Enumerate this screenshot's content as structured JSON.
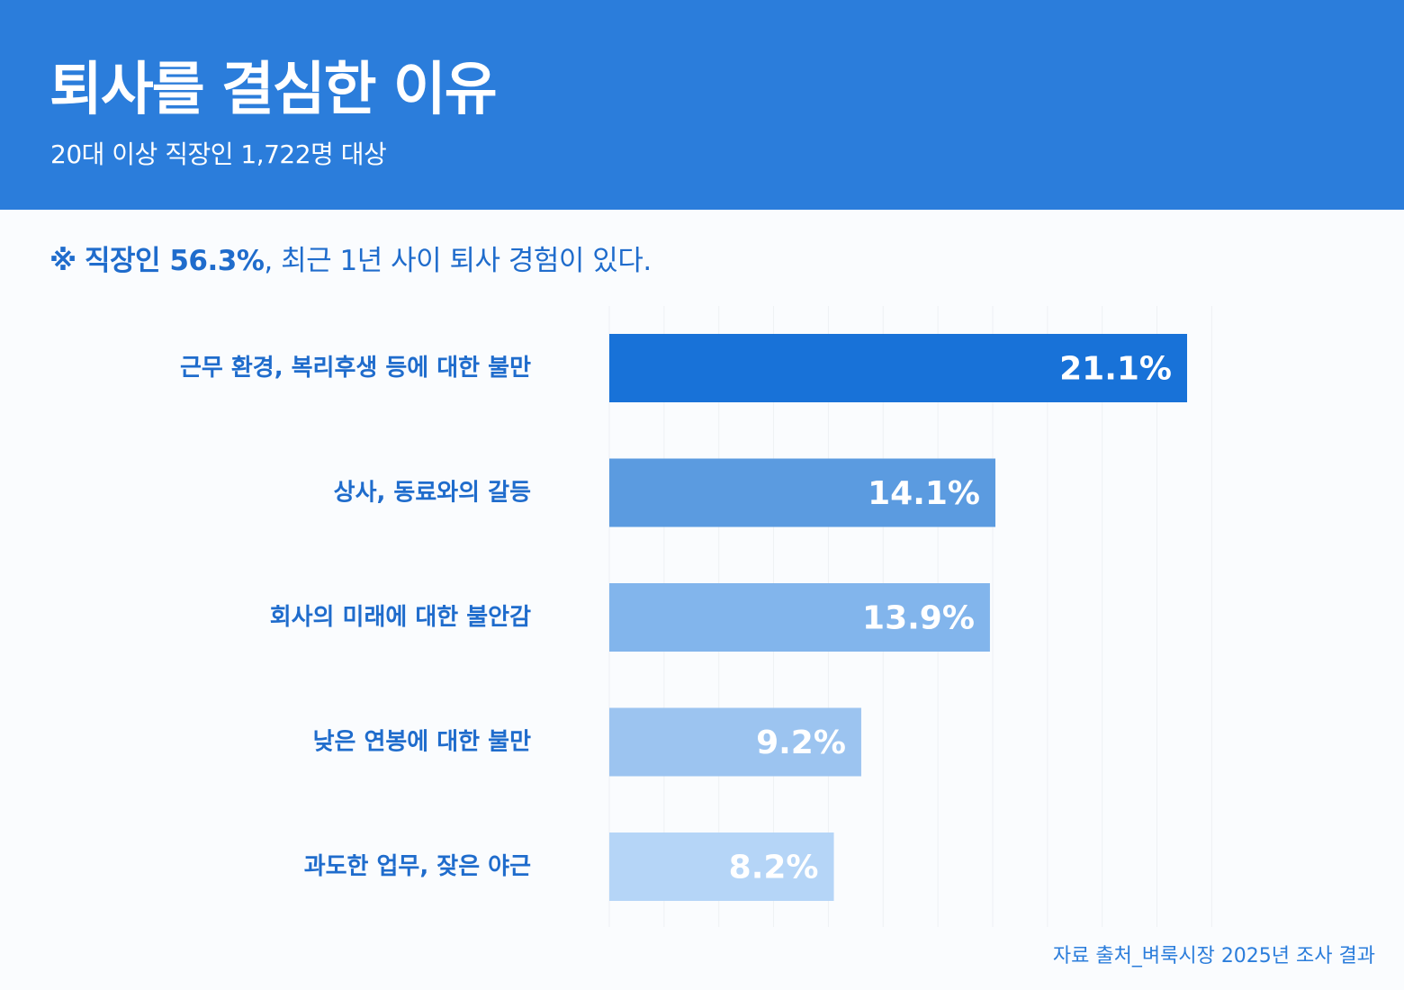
{
  "header": {
    "title": "퇴사를 결심한 이유",
    "subtitle": "20대 이상 직장인 1,722명 대상"
  },
  "highlight": {
    "mark": "※",
    "emphasis": "직장인 56.3%",
    "rest": ", 최근 1년 사이 퇴사 경험이 있다."
  },
  "chart_data": {
    "type": "bar",
    "orientation": "horizontal",
    "categories": [
      "근무 환경, 복리후생 등에 대한 불만",
      "상사, 동료와의 갈등",
      "회사의 미래에 대한 불안감",
      "낮은 연봉에 대한 불만",
      "과도한 업무, 잦은 야근"
    ],
    "values": [
      21.1,
      14.1,
      13.9,
      9.2,
      8.2
    ],
    "value_labels": [
      "21.1%",
      "14.1%",
      "13.9%",
      "9.2%",
      "8.2%"
    ],
    "colors": [
      "#1872d8",
      "#5b9be0",
      "#82b5ec",
      "#9cc4f0",
      "#b5d5f7"
    ],
    "label_color": "#1f6ccc",
    "value_label_color": "#ffffff",
    "xlim": [
      0,
      22
    ],
    "grid": true,
    "gridline_color": "#eef1f4",
    "legend": "none"
  },
  "footer": {
    "source": "자료 출처_벼룩시장 2025년 조사 결과"
  }
}
